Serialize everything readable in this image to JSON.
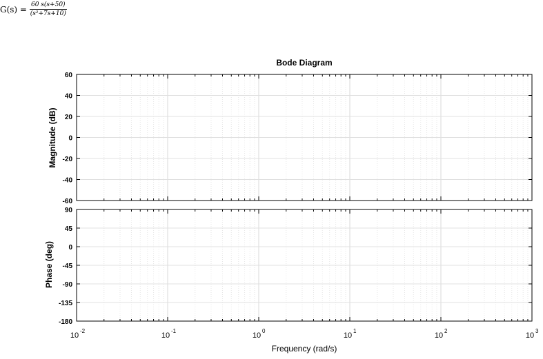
{
  "formula": {
    "lhs": "G(s) =",
    "numerator": "60 s(s+50)",
    "denominator": "(s²+7s+10)"
  },
  "chart_data": {
    "type": "line",
    "title": "Bode Diagram",
    "xlabel": "Frequency  (rad/s)",
    "xscale": "log",
    "xlim": [
      0.01,
      1000
    ],
    "x_ticks": [
      {
        "base": "10",
        "exp": "-2"
      },
      {
        "base": "10",
        "exp": "-1"
      },
      {
        "base": "10",
        "exp": "0"
      },
      {
        "base": "10",
        "exp": "1"
      },
      {
        "base": "10",
        "exp": "2"
      },
      {
        "base": "10",
        "exp": "3"
      }
    ],
    "grid": true,
    "panels": [
      {
        "name": "magnitude",
        "ylabel": "Magnitude (dB)",
        "ylim": [
          -60,
          60
        ],
        "yticks": [
          60,
          40,
          20,
          0,
          -20,
          -40,
          -60
        ],
        "series": []
      },
      {
        "name": "phase",
        "ylabel": "Phase (deg)",
        "ylim": [
          -180,
          90
        ],
        "yticks": [
          90,
          45,
          0,
          -45,
          -90,
          -135,
          -180
        ],
        "series": []
      }
    ]
  }
}
